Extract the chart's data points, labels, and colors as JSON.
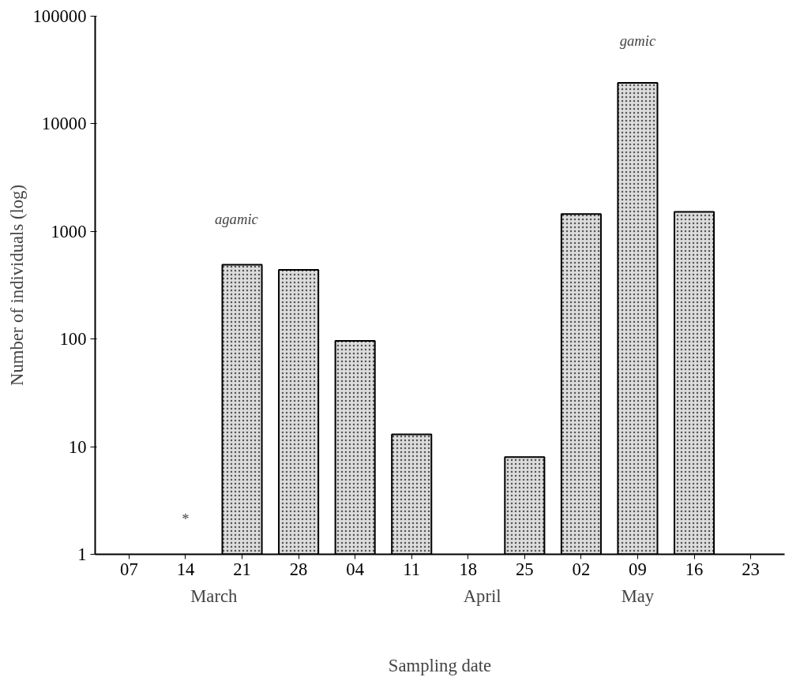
{
  "chart_data": {
    "type": "bar",
    "xlabel": "Sampling date",
    "ylabel": "Number of individuals (log)",
    "categories": [
      "07",
      "14",
      "21",
      "28",
      "04",
      "11",
      "18",
      "25",
      "02",
      "09",
      "16",
      "23"
    ],
    "values": [
      null,
      null,
      490,
      440,
      96,
      13,
      null,
      8,
      1450,
      24000,
      1520,
      null
    ],
    "color": "#dcdcdc",
    "log": true,
    "ylim": [
      1,
      100000
    ],
    "yticks": [
      1,
      10,
      100,
      1000,
      10000,
      100000
    ],
    "grid": false,
    "annotations": [
      "March",
      "April",
      "May",
      "agamic",
      "gamic",
      "*"
    ]
  }
}
